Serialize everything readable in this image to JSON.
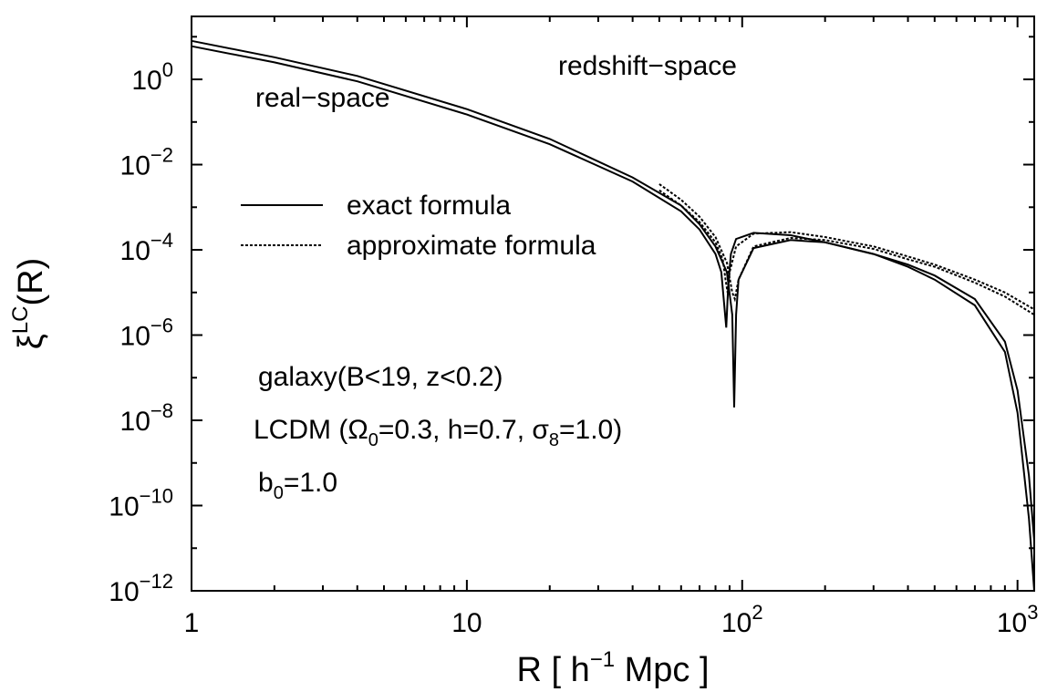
{
  "chart_data": {
    "type": "line",
    "x_scale": "log",
    "y_scale": "log",
    "xlim": [
      1,
      1150
    ],
    "ylim": [
      1e-12,
      30
    ],
    "grid": false,
    "legend_placement": "center-left",
    "xlabel": {
      "main": "R [ h",
      "sup": "−1",
      "tail": " Mpc ]"
    },
    "ylabel": {
      "main": "ξ",
      "sup": "LC",
      "tail": "(R)"
    },
    "x_ticks": [
      {
        "value": 1,
        "base": "1",
        "exp": ""
      },
      {
        "value": 10,
        "base": "10",
        "exp": ""
      },
      {
        "value": 100,
        "base": "10",
        "exp": "2"
      },
      {
        "value": 1000,
        "base": "10",
        "exp": "3"
      }
    ],
    "y_ticks": [
      {
        "value": 1,
        "base": "10",
        "exp": "0"
      },
      {
        "value": 0.01,
        "base": "10",
        "exp": "−2"
      },
      {
        "value": 0.0001,
        "base": "10",
        "exp": "−4"
      },
      {
        "value": 1e-06,
        "base": "10",
        "exp": "−6"
      },
      {
        "value": 1e-08,
        "base": "10",
        "exp": "−8"
      },
      {
        "value": 1e-10,
        "base": "10",
        "exp": "−10"
      },
      {
        "value": 1e-12,
        "base": "10",
        "exp": "−12"
      }
    ],
    "legend": [
      {
        "label": "exact formula",
        "style": "solid"
      },
      {
        "label": "approximate formula",
        "style": "dashed"
      }
    ],
    "annotations": {
      "real_space": "real−space",
      "redshift_space": "redshift−space",
      "galaxy": "galaxy(B<19, z<0.2)",
      "lcdm": {
        "p1": "LCDM (Ω",
        "s1": "0",
        "p2": "=0.3, h=0.7, σ",
        "s2": "8",
        "p3": "=1.0)"
      },
      "bias": {
        "p1": "b",
        "s1": "0",
        "p2": "=1.0"
      }
    },
    "series": [
      {
        "style": "solid",
        "x": [
          1,
          2,
          4,
          10,
          20,
          40,
          60,
          70,
          80,
          84,
          87.5,
          89,
          91,
          95,
          110,
          150,
          200,
          300,
          400,
          500,
          700,
          900,
          1000,
          1100,
          1150
        ],
        "y": [
          6.0,
          2.5,
          0.9,
          0.15,
          0.03,
          0.004,
          0.0008,
          0.0003,
          8e-05,
          3e-05,
          1.5e-06,
          1.5e-05,
          8e-05,
          0.00018,
          0.00025,
          0.00022,
          0.00015,
          8e-05,
          4e-05,
          2e-05,
          5e-06,
          4e-07,
          1.5e-08,
          5e-11,
          1e-12
        ]
      },
      {
        "style": "solid",
        "x": [
          1,
          2,
          4,
          10,
          20,
          40,
          60,
          70,
          80,
          88,
          92,
          93.5,
          95,
          97,
          110,
          150,
          200,
          300,
          400,
          500,
          700,
          900,
          1000,
          1100,
          1150
        ],
        "y": [
          8.0,
          3.3,
          1.2,
          0.2,
          0.04,
          0.005,
          0.0011,
          0.0004,
          0.00012,
          3e-05,
          3e-06,
          2e-08,
          3e-06,
          2e-05,
          0.00011,
          0.00017,
          0.00015,
          8e-05,
          4.5e-05,
          2.5e-05,
          7e-06,
          7e-07,
          5e-08,
          5e-10,
          1.5e-11
        ]
      },
      {
        "style": "dashed",
        "x": [
          50,
          60,
          70,
          80,
          85,
          87,
          88.5,
          90,
          95,
          110,
          150,
          200,
          300,
          400,
          500,
          700,
          900,
          1150
        ],
        "y": [
          0.0025,
          0.0011,
          0.00045,
          0.00015,
          6e-05,
          2e-05,
          1e-05,
          3e-05,
          0.00012,
          0.00024,
          0.00026,
          0.0002,
          0.00012,
          7e-05,
          4.5e-05,
          2e-05,
          1e-05,
          4e-06
        ]
      },
      {
        "style": "dashed",
        "x": [
          50,
          60,
          70,
          80,
          88,
          92,
          94,
          97,
          110,
          150,
          200,
          300,
          400,
          500,
          700,
          900,
          1150
        ],
        "y": [
          0.0035,
          0.0015,
          0.0006,
          0.0002,
          5e-05,
          1e-05,
          7e-06,
          2e-05,
          0.00012,
          0.00019,
          0.00017,
          0.000105,
          6e-05,
          4e-05,
          1.7e-05,
          8e-06,
          3e-06
        ]
      }
    ]
  }
}
